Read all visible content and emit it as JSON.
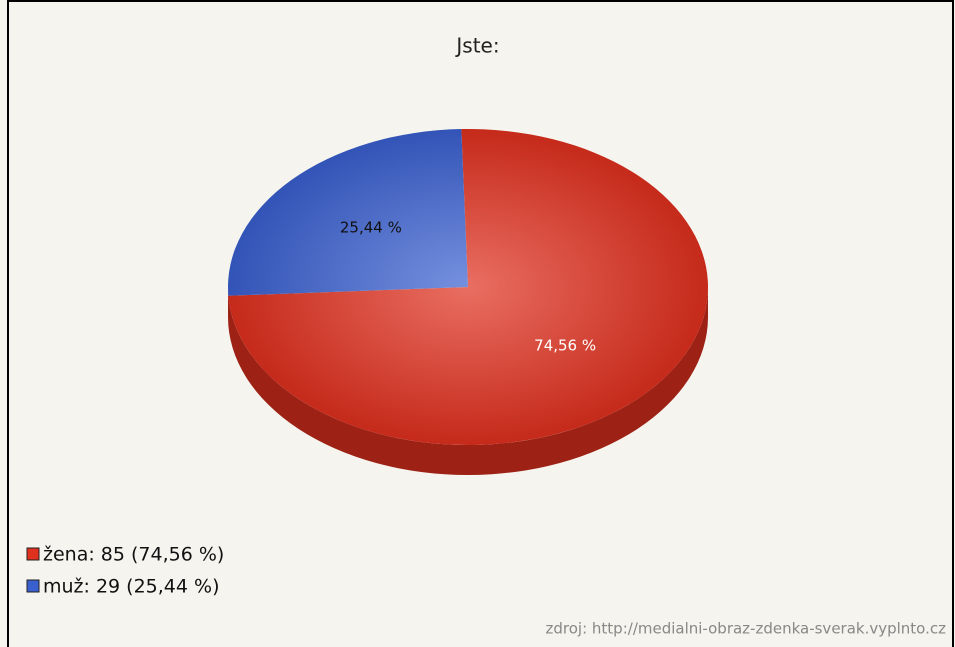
{
  "chart_data": {
    "type": "pie",
    "title": "Jste:",
    "categories": [
      "žena",
      "muž"
    ],
    "values": [
      74.56,
      25.44
    ],
    "value_labels": [
      "74,56 %",
      "25,44 %"
    ],
    "colors": [
      "#e0301e",
      "#3a60d0"
    ],
    "legend_labels": [
      "žena: 85 (74,56 %)",
      "muž: 29 (25,44 %)"
    ],
    "source": "zdroj: http://medialni-obraz-zdenka-sverak.vyplnto.cz"
  }
}
